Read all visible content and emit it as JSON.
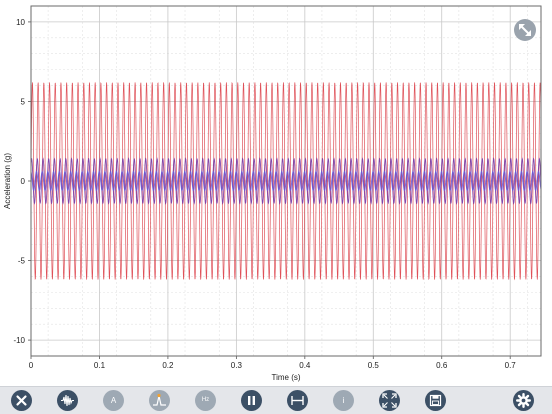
{
  "chart_data": {
    "type": "line",
    "xlabel": "Time (s)",
    "ylabel": "Acceleration (g)",
    "xlim": [
      0,
      0.745
    ],
    "ylim": [
      -11,
      11
    ],
    "x_ticks": [
      "0",
      "0.1",
      "0.2",
      "0.3",
      "0.4",
      "0.5",
      "0.6",
      "0.7"
    ],
    "y_ticks": [
      "-10",
      "-5",
      "0",
      "5",
      "10"
    ],
    "grid": true,
    "series": [
      {
        "color": "#d9323c",
        "waveform": "sine",
        "amplitude": 6.2,
        "frequency_hz": 120
      },
      {
        "color": "#7b3fa8",
        "waveform": "sine",
        "amplitude": 1.4,
        "frequency_hz": 120
      },
      {
        "color": "#6b5bd6",
        "waveform": "sine",
        "amplitude": 0.6,
        "frequency_hz": 120
      }
    ]
  },
  "toolbar": {
    "buttons": [
      {
        "icon": "close-icon",
        "label": "",
        "enabled": true
      },
      {
        "icon": "waveform-icon",
        "label": "",
        "enabled": true
      },
      {
        "icon": "annotate-icon",
        "label": "A",
        "enabled": false
      },
      {
        "icon": "peak-marker-icon",
        "label": "",
        "enabled": false
      },
      {
        "icon": "hz-icon",
        "label": "Hz",
        "enabled": false
      },
      {
        "icon": "pause-icon",
        "label": "",
        "enabled": true
      },
      {
        "icon": "measure-span-icon",
        "label": "",
        "enabled": true
      },
      {
        "icon": "info-icon",
        "label": "i",
        "enabled": false
      },
      {
        "icon": "fit-screen-icon",
        "label": "",
        "enabled": true
      },
      {
        "icon": "save-icon",
        "label": "",
        "enabled": true
      },
      {
        "icon": "settings-icon",
        "label": "",
        "enabled": true
      }
    ]
  },
  "colors": {
    "toolbar_background": "#e4e6ea",
    "button_active": "#3c5066",
    "button_disabled": "#9ea9b4",
    "grid_major": "#c8c8c8",
    "grid_minor": "#e2e2e2"
  }
}
